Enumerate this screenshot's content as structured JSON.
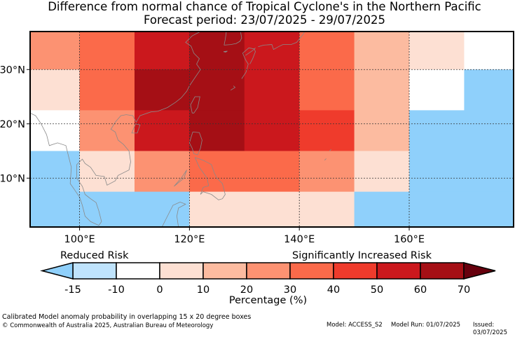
{
  "title_line1": "Difference from normal chance of Tropical Cyclone's in the Northern Pacific",
  "title_line2": "Forecast period: 23/07/2025 - 29/07/2025",
  "map": {
    "lon_range": [
      91,
      179
    ],
    "lat_range": [
      1,
      37
    ],
    "lat_ticks": [
      {
        "value": 30,
        "label": "30°N"
      },
      {
        "value": 20,
        "label": "20°N"
      },
      {
        "value": 10,
        "label": "10°N"
      }
    ],
    "lon_ticks": [
      {
        "value": 100,
        "label": "100°E"
      },
      {
        "value": 120,
        "label": "120°E"
      },
      {
        "value": 140,
        "label": "140°E"
      },
      {
        "value": 160,
        "label": "160°E"
      }
    ],
    "gridlines": "dashed",
    "boxes_note_lon_edges": [
      91,
      100,
      110,
      120,
      130,
      140,
      150,
      160,
      170,
      179
    ],
    "boxes_note_lat_edges": [
      37,
      30,
      22.5,
      15,
      7.5,
      1
    ],
    "anomaly_grid": [
      [
        20,
        30,
        50,
        60,
        50,
        30,
        10,
        0,
        -10
      ],
      [
        0,
        30,
        60,
        60,
        50,
        30,
        10,
        -10,
        -15
      ],
      [
        -10,
        20,
        50,
        60,
        50,
        40,
        10,
        -15,
        -15
      ],
      [
        -15,
        0,
        20,
        30,
        30,
        20,
        0,
        -15,
        -15
      ],
      [
        -15,
        -15,
        -15,
        0,
        0,
        0,
        -15,
        -15,
        -15
      ]
    ]
  },
  "colorbar": {
    "bins": [
      {
        "from": -15,
        "to": -10,
        "color": "#bfe3fc"
      },
      {
        "from": -10,
        "to": 0,
        "color": "#ffffff"
      },
      {
        "from": 0,
        "to": 10,
        "color": "#fde0d3"
      },
      {
        "from": 10,
        "to": 20,
        "color": "#fcbba0"
      },
      {
        "from": 20,
        "to": 30,
        "color": "#fc9272"
      },
      {
        "from": 30,
        "to": 40,
        "color": "#fb6a4a"
      },
      {
        "from": 40,
        "to": 50,
        "color": "#ef3b2c"
      },
      {
        "from": 50,
        "to": 60,
        "color": "#cb181d"
      },
      {
        "from": 60,
        "to": 70,
        "color": "#a50f15"
      }
    ],
    "under_color": "#8fd0fb",
    "over_color": "#67000d",
    "ticks": [
      "-15",
      "-10",
      "0",
      "10",
      "20",
      "30",
      "40",
      "50",
      "60",
      "70"
    ],
    "label_reduced": "Reduced Risk",
    "label_increased": "Significantly Increased Risk",
    "axis_title": "Percentage (%)"
  },
  "footer": {
    "line1": "Calibrated Model anomaly probability in overlapping 15 x 20 degree boxes",
    "line2": "© Commonwealth of Australia 2025, Australian Bureau of Meteorology",
    "model": "Model: ACCESS_S2",
    "run": "Model Run: 01/07/2025",
    "issued": "Issued: 03/07/2025"
  }
}
